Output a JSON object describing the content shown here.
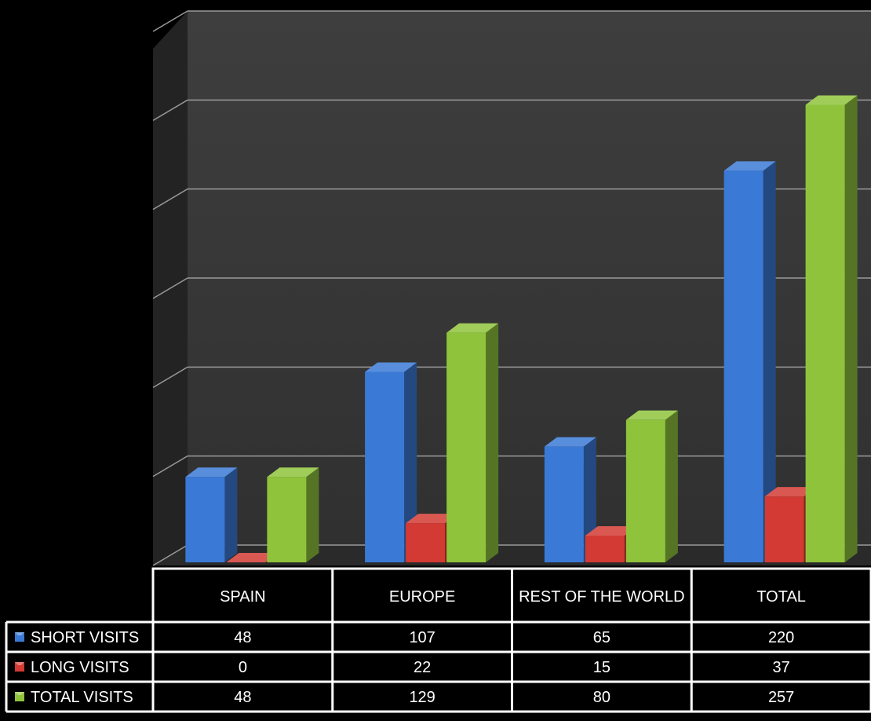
{
  "chart_data": {
    "type": "bar",
    "categories": [
      "SPAIN",
      "EUROPE",
      "REST OF THE WORLD",
      "TOTAL"
    ],
    "series": [
      {
        "name": "SHORT VISITS",
        "values": [
          48,
          107,
          65,
          220
        ],
        "color": "#3a7ad6",
        "icon": "blue-square-icon"
      },
      {
        "name": "LONG VISITS",
        "values": [
          0,
          22,
          15,
          37
        ],
        "color": "#d23a33",
        "icon": "red-square-icon"
      },
      {
        "name": "TOTAL VISITS",
        "values": [
          48,
          129,
          80,
          257
        ],
        "color": "#8fc33c",
        "icon": "green-square-icon"
      }
    ],
    "ylim": [
      0,
      300
    ],
    "grid": true,
    "legend": "data-table",
    "colors": {
      "background": "#000000",
      "wall": "#3a3a3a",
      "floor": "#2a2a2a",
      "gridline": "#9a9a9a",
      "table_border": "#ffffff",
      "text": "#ffffff"
    }
  }
}
